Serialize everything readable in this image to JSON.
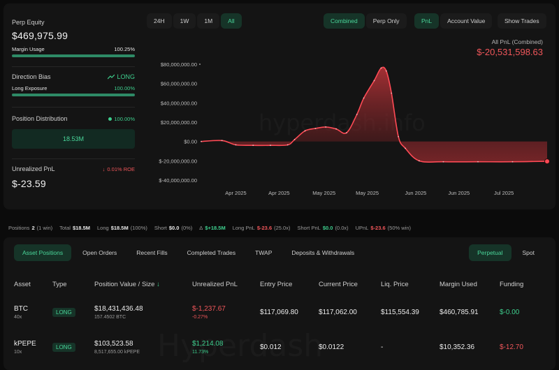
{
  "summary": {
    "perp_equity_label": "Perp Equity",
    "perp_equity_value": "$469,975.99",
    "margin_usage_label": "Margin Usage",
    "margin_usage_value": "100.25%",
    "margin_usage_fraction": 1.0,
    "direction_bias_label": "Direction Bias",
    "direction_bias_value": "LONG",
    "long_exposure_label": "Long Exposure",
    "long_exposure_value": "100.00%",
    "long_exposure_fraction": 1.0,
    "position_distribution_label": "Position Distribution",
    "position_distribution_pct": "100.00%",
    "position_distribution_amount": "18.53M",
    "unrealized_pnl_label": "Unrealized PnL",
    "unrealized_roe": "0.01% ROE",
    "unrealized_pnl_value": "$-23.59"
  },
  "chart_controls": {
    "ranges": [
      "24H",
      "1W",
      "1M",
      "All"
    ],
    "active_range": "All",
    "views": [
      "Combined",
      "Perp Only"
    ],
    "active_view": "Combined",
    "metrics": [
      "PnL",
      "Account Value"
    ],
    "active_metric": "PnL",
    "show_trades": "Show Trades"
  },
  "pnl_header": {
    "title": "All PnL (Combined)",
    "value": "$-20,531,598.63"
  },
  "watermark_top": "hyperdash.info",
  "watermark_bottom": "Hyperdash",
  "chart_data": {
    "type": "area",
    "title": "",
    "xlabel": "",
    "ylabel": "",
    "ylim": [
      -40000000,
      80000000
    ],
    "y_ticks": [
      "$80,000,000.00",
      "$60,000,000.00",
      "$40,000,000.00",
      "$20,000,000.00",
      "$0.00",
      "$-20,000,000.00",
      "$-40,000,000.00"
    ],
    "y_tick_values": [
      80000000,
      60000000,
      40000000,
      20000000,
      0,
      -20000000,
      -40000000
    ],
    "x_ticks": [
      "Apr 2025",
      "Apr 2025",
      "May 2025",
      "May 2025",
      "Jun 2025",
      "Jun 2025",
      "Jul 2025"
    ],
    "x_tick_positions": [
      0.1,
      0.225,
      0.355,
      0.48,
      0.62,
      0.745,
      0.875
    ],
    "grid": false,
    "series": [
      {
        "x": [
          0.0,
          0.06,
          0.1,
          0.15,
          0.2,
          0.25,
          0.27,
          0.3,
          0.33,
          0.36,
          0.39,
          0.42,
          0.45,
          0.47,
          0.5,
          0.52,
          0.535,
          0.55,
          0.57,
          0.59,
          0.63,
          0.7,
          0.8,
          0.9,
          1.0
        ],
        "values": [
          0,
          1000000,
          -3500000,
          -4000000,
          -4000000,
          -3500000,
          2000000,
          11000000,
          13500000,
          15000000,
          13000000,
          9000000,
          28000000,
          45000000,
          63000000,
          76000000,
          73000000,
          50000000,
          5000000,
          -7000000,
          -20000000,
          -21000000,
          -21000000,
          -21000000,
          -20531598.63
        ]
      }
    ]
  },
  "stats_strip": [
    {
      "label": "Positions",
      "value": "2",
      "extra": "(1 win)",
      "tone": "default"
    },
    {
      "label": "Total",
      "value": "$18.5M",
      "extra": "",
      "tone": "default"
    },
    {
      "label": "Long",
      "value": "$18.5M",
      "extra": "(100%)",
      "tone": "default"
    },
    {
      "label": "Short",
      "value": "$0.0",
      "extra": "(0%)",
      "tone": "default"
    },
    {
      "label": "Δ",
      "value": "$+18.5M",
      "extra": "",
      "tone": "green"
    },
    {
      "label": "Long PnL",
      "value": "$-23.6",
      "extra": "(25.0x)",
      "tone": "red"
    },
    {
      "label": "Short PnL",
      "value": "$0.0",
      "extra": "(0.0x)",
      "tone": "green"
    },
    {
      "label": "UPnL",
      "value": "$-23.6",
      "extra": "(50% win)",
      "tone": "red"
    }
  ],
  "tabs": [
    "Asset Positions",
    "Open Orders",
    "Recent Fills",
    "Completed Trades",
    "TWAP",
    "Deposits & Withdrawals"
  ],
  "active_tab": "Asset Positions",
  "market_tabs": [
    "Perpetual",
    "Spot"
  ],
  "active_market_tab": "Perpetual",
  "table": {
    "headers": [
      "Asset",
      "Type",
      "Position Value / Size",
      "Unrealized PnL",
      "Entry Price",
      "Current Price",
      "Liq. Price",
      "Margin Used",
      "Funding"
    ],
    "sort_indicator": "↓",
    "rows": [
      {
        "asset": "BTC",
        "leverage": "40x",
        "type": "LONG",
        "position_value": "$18,431,436.48",
        "position_size": "157.4502 BTC",
        "upnl": "$-1,237.67",
        "upnl_pct": "-0.27%",
        "upnl_tone": "red",
        "entry": "$117,069.80",
        "current": "$117,062.00",
        "liq": "$115,554.39",
        "margin": "$460,785.91",
        "funding": "$-0.00",
        "funding_tone": "green"
      },
      {
        "asset": "kPEPE",
        "leverage": "10x",
        "type": "LONG",
        "position_value": "$103,523.58",
        "position_size": "8,517,655.00 kPEPE",
        "upnl": "$1,214.08",
        "upnl_pct": "11.73%",
        "upnl_tone": "green",
        "entry": "$0.012",
        "current": "$0.0122",
        "liq": "-",
        "margin": "$10,352.36",
        "funding": "$-12.70",
        "funding_tone": "red"
      }
    ]
  },
  "colors": {
    "accent_green": "#3ecf8e",
    "accent_red": "#f0565a",
    "panel_bg": "#141414",
    "page_bg": "#0b0b0b"
  }
}
